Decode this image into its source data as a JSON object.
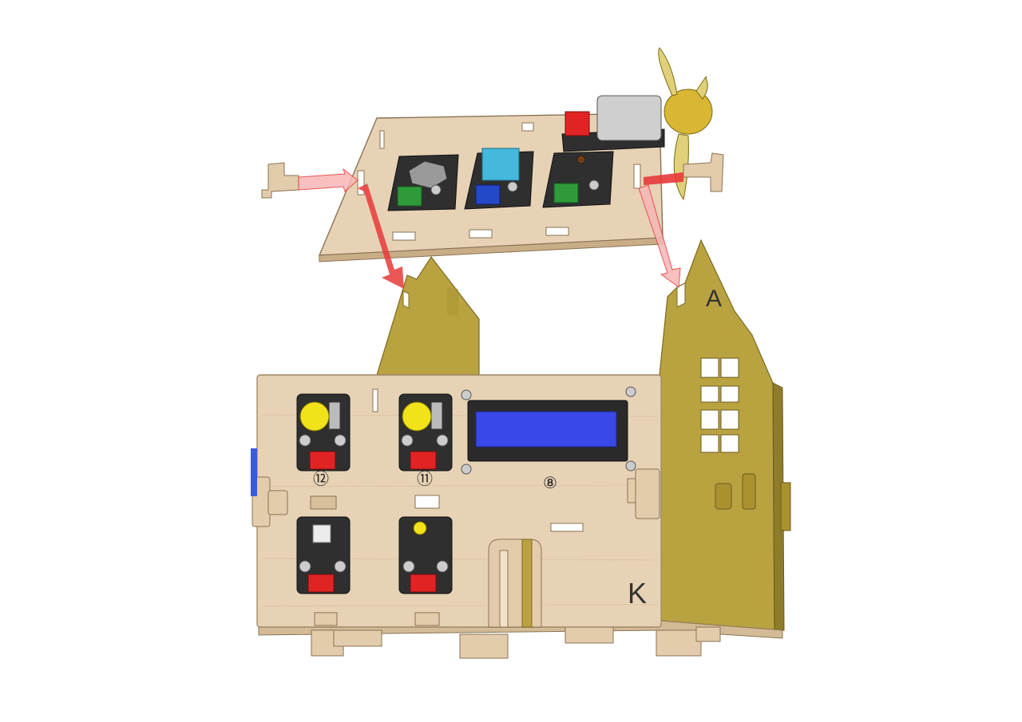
{
  "diagram": {
    "panel_letters": {
      "roof_gable": "A",
      "front_wall": "K"
    },
    "pin_labels": {
      "left_button": "⑫",
      "right_button": "⑪",
      "lcd": "⑧"
    },
    "colors": {
      "wood_light": "#e7d2b5",
      "wood_edge": "#b79b78",
      "wood_gold": "#b9a240",
      "wood_gold_dark": "#8f7c2a",
      "module_dark": "#2f2f2f",
      "lcd_blue": "#3b48e8",
      "button_yellow": "#f2e21a",
      "connector_red": "#e02424",
      "connector_green": "#2f9a3a",
      "connector_blue": "#2348c8",
      "dht_cyan": "#45b9dc",
      "motor_grey": "#cfcfcf",
      "fan_gold": "#d9b634",
      "arrow_red": "#e8393a",
      "arrow_pink": "#f7b6b6"
    },
    "icons": [
      "gas-sensor-icon",
      "humidity-sensor-icon",
      "photocell-icon",
      "fan-motor-icon",
      "push-button-icon",
      "lcd-display-icon",
      "led-icon"
    ]
  }
}
